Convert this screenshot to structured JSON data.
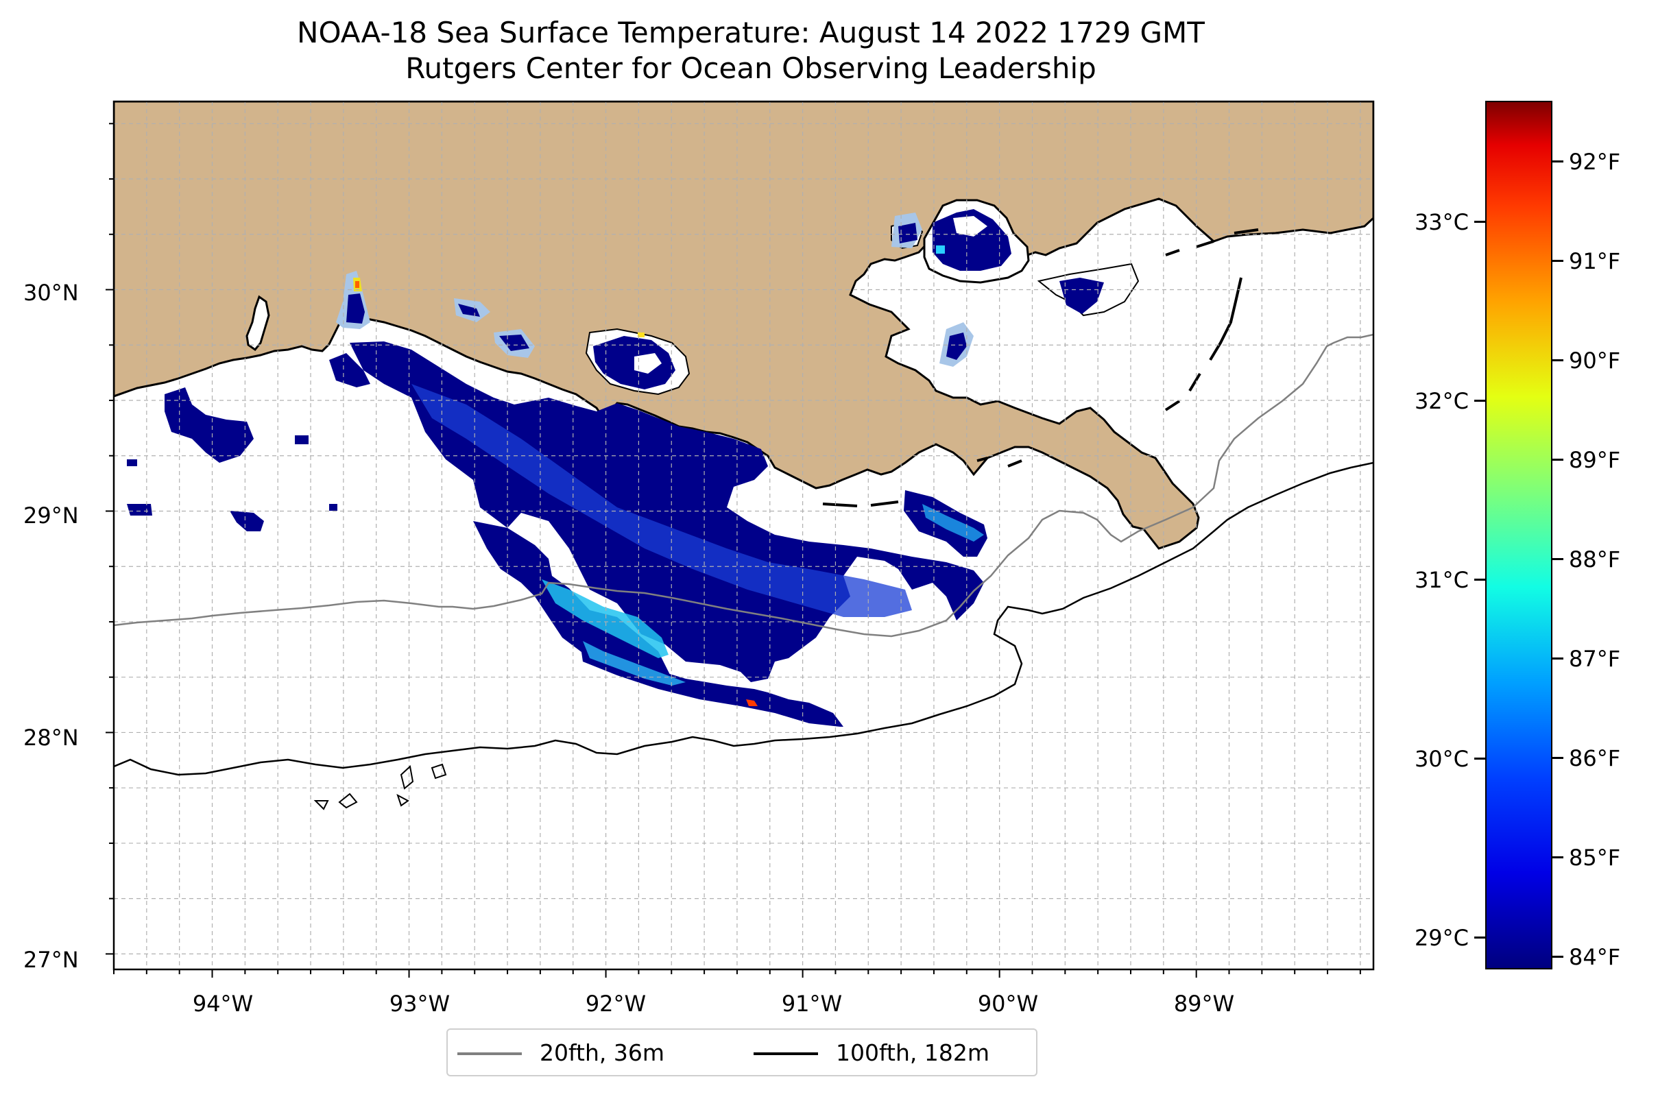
{
  "title": {
    "line1": "NOAA-18 Sea Surface Temperature: August 14 2022 1729 GMT",
    "line2": "Rutgers Center for Ocean Observing Leadership"
  },
  "map": {
    "lon_range": [
      -94.5,
      -88.1
    ],
    "lat_range": [
      26.93,
      30.85
    ],
    "lat_labels": [
      "30°N",
      "29°N",
      "28°N",
      "27°N"
    ],
    "lat_values": [
      30,
      29,
      28,
      27
    ],
    "lon_labels": [
      "94°W",
      "93°W",
      "92°W",
      "91°W",
      "90°W",
      "89°W"
    ],
    "lon_values": [
      -94,
      -93,
      -92,
      -91,
      -90,
      -89
    ],
    "gridlines": true,
    "land_color": "#D2B48C",
    "ocean_color": "#ffffff"
  },
  "legend": {
    "placement": "bottom-center, below map",
    "items": [
      {
        "label": "20fth, 36m",
        "color": "#808080"
      },
      {
        "label": "100fth, 182m",
        "color": "#000000"
      }
    ]
  },
  "colorbar": {
    "colormap": "jet",
    "celsius_labels": [
      "33°C",
      "32°C",
      "31°C",
      "30°C",
      "29°C"
    ],
    "celsius_values": [
      33,
      32,
      31,
      30,
      29
    ],
    "fahrenheit_labels": [
      "92°F",
      "91°F",
      "90°F",
      "89°F",
      "88°F",
      "87°F",
      "86°F",
      "85°F",
      "84°F"
    ],
    "fahrenheit_values": [
      92,
      91,
      90,
      89,
      88,
      87,
      86,
      85,
      84
    ],
    "range_f": [
      83.8,
      92.6
    ]
  }
}
